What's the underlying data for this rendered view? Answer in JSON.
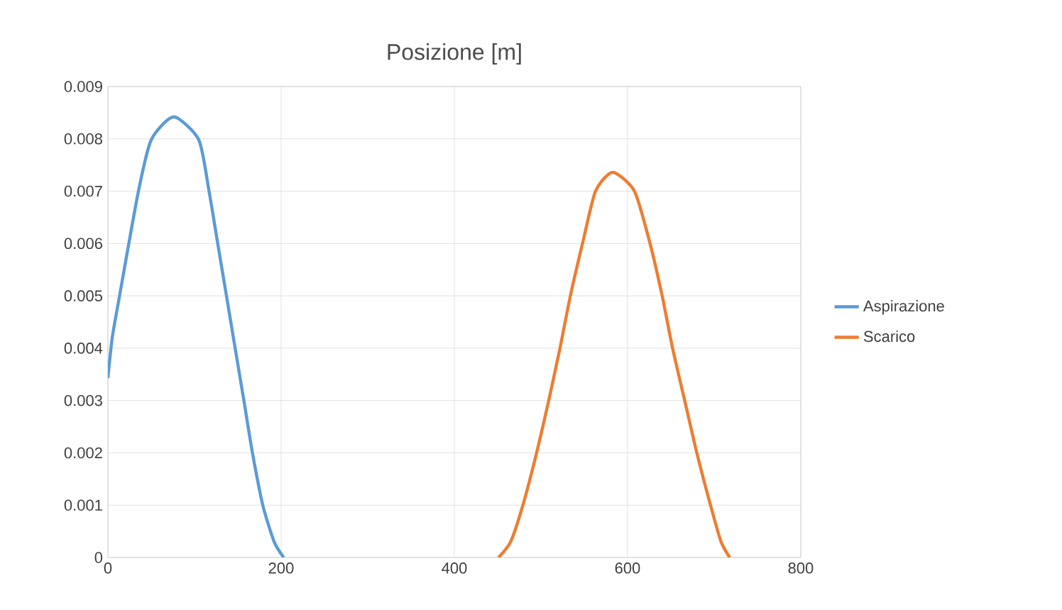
{
  "chart_data": {
    "type": "line",
    "title": "Posizione [m]",
    "xlim": [
      0,
      800
    ],
    "xticks": [
      0,
      200,
      400,
      600,
      800
    ],
    "ylim": [
      0,
      0.009
    ],
    "yticks": [
      0,
      0.001,
      0.002,
      0.003,
      0.004,
      0.005,
      0.006,
      0.007,
      0.008,
      0.009
    ],
    "grid": true,
    "legend": "right",
    "marker": "none",
    "line_style": "solid",
    "series": [
      {
        "name": "Aspirazione",
        "color": "#5b9bd5",
        "x": [
          0,
          5,
          13,
          35,
          50,
          76,
          105,
          117,
          127,
          137,
          147,
          157,
          167,
          179,
          192,
          203
        ],
        "values": [
          0.00343,
          0.0042,
          0.00496,
          0.00698,
          0.00798,
          0.00842,
          0.00798,
          0.00698,
          0.00598,
          0.00499,
          0.00399,
          0.003,
          0.00199,
          0.00099,
          0.0003,
          0
        ]
      },
      {
        "name": "Scarico",
        "color": "#ed7d31",
        "x": [
          451,
          465,
          479,
          495,
          509,
          522,
          534,
          548,
          563,
          583,
          608,
          626,
          640,
          652,
          666,
          680,
          696,
          708,
          718
        ],
        "values": [
          0,
          0.0003,
          0.00099,
          0.002,
          0.003,
          0.004,
          0.005,
          0.006,
          0.007,
          0.00736,
          0.007,
          0.006,
          0.005,
          0.004,
          0.003,
          0.002,
          0.00099,
          0.0003,
          0
        ]
      }
    ]
  }
}
